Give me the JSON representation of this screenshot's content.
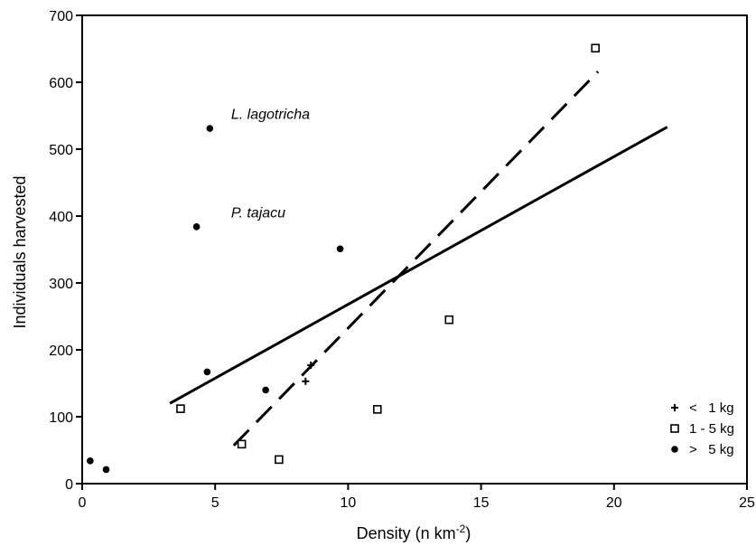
{
  "chart_data": {
    "type": "scatter",
    "title": "",
    "xlabel": "Density (n km",
    "xlabel_sup": "-2",
    "xlabel_close": ")",
    "ylabel": "Individuals harvested",
    "xlim": [
      0,
      25
    ],
    "ylim": [
      0,
      700
    ],
    "xticks": [
      0,
      5,
      10,
      15,
      20,
      25
    ],
    "yticks": [
      0,
      100,
      200,
      300,
      400,
      500,
      600,
      700
    ],
    "grid": false,
    "legend_position": "bottom-right",
    "series": [
      {
        "name": "<   1 kg",
        "marker": "plus",
        "points": [
          [
            8.4,
            153
          ],
          [
            8.6,
            177
          ]
        ]
      },
      {
        "name": "1 - 5 kg",
        "marker": "open-square",
        "points": [
          [
            3.7,
            112
          ],
          [
            6.0,
            59
          ],
          [
            7.4,
            36
          ],
          [
            11.1,
            111
          ],
          [
            13.8,
            245
          ],
          [
            19.3,
            651
          ]
        ]
      },
      {
        "name": ">   5 kg",
        "marker": "filled-circle",
        "points": [
          [
            0.3,
            34
          ],
          [
            0.9,
            21
          ],
          [
            4.3,
            384
          ],
          [
            4.7,
            167
          ],
          [
            4.8,
            531
          ],
          [
            6.9,
            140
          ],
          [
            9.7,
            351
          ]
        ]
      }
    ],
    "trend_lines": [
      {
        "style": "solid",
        "x": [
          3.3,
          22.0
        ],
        "y": [
          120,
          533
        ]
      },
      {
        "style": "dashed",
        "x": [
          5.7,
          19.4
        ],
        "y": [
          57,
          616
        ]
      }
    ],
    "annotations": [
      {
        "text": "L. lagotricha",
        "x": 5.6,
        "y": 545
      },
      {
        "text": "P. tajacu",
        "x": 5.6,
        "y": 398
      }
    ]
  }
}
